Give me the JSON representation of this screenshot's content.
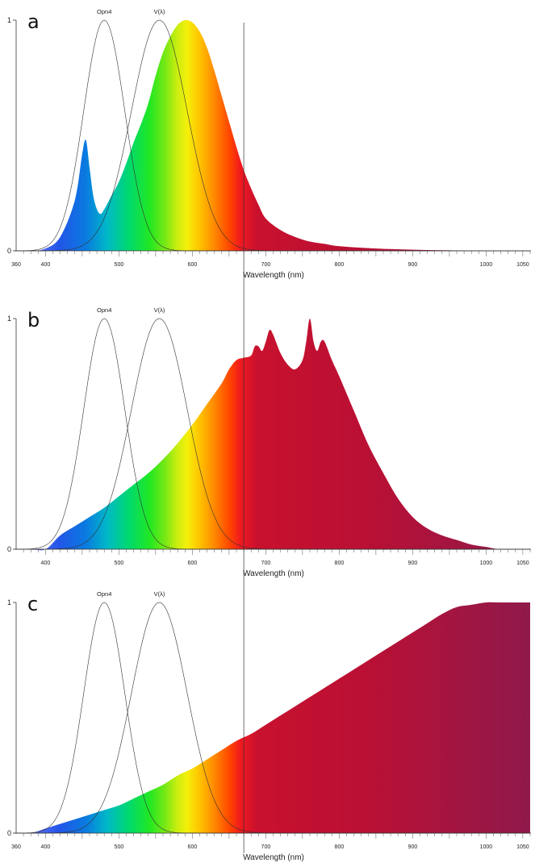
{
  "chart_data": [
    {
      "type": "area",
      "panel_label": "a",
      "xlabel": "Wavelength (nm)",
      "ylabel": "",
      "xlim": [
        360,
        1060
      ],
      "ylim": [
        0,
        1
      ],
      "y_ticks": [
        "0",
        "1"
      ],
      "x_tick_labels": [
        {
          "value": 360,
          "label": "360"
        },
        {
          "value": 400,
          "label": "400"
        },
        {
          "value": 500,
          "label": "500"
        },
        {
          "value": 600,
          "label": "600"
        },
        {
          "value": 700,
          "label": "700"
        },
        {
          "value": 800,
          "label": "800"
        },
        {
          "value": 900,
          "label": "900"
        },
        {
          "value": 1000,
          "label": "1000"
        },
        {
          "value": 1050,
          "label": "1050"
        }
      ],
      "reference_line_nm": 670,
      "reference_curves": [
        {
          "name": "Opn4",
          "peak_nm": 480,
          "width_nm": 28
        },
        {
          "name": "V(λ)",
          "peak_nm": 555,
          "width_nm": 38
        }
      ],
      "spectrum": {
        "x": [
          360,
          380,
          400,
          420,
          440,
          450,
          455,
          460,
          465,
          470,
          475,
          480,
          490,
          500,
          510,
          520,
          530,
          540,
          550,
          560,
          570,
          580,
          590,
          600,
          610,
          620,
          630,
          640,
          650,
          660,
          670,
          680,
          690,
          700,
          720,
          740,
          760,
          780,
          800,
          850,
          900,
          950,
          1000,
          1060
        ],
        "y": [
          0.0,
          0.0,
          0.01,
          0.06,
          0.22,
          0.42,
          0.48,
          0.36,
          0.24,
          0.18,
          0.16,
          0.18,
          0.24,
          0.3,
          0.38,
          0.47,
          0.55,
          0.64,
          0.76,
          0.86,
          0.93,
          0.98,
          1.0,
          0.99,
          0.95,
          0.88,
          0.78,
          0.67,
          0.56,
          0.45,
          0.35,
          0.27,
          0.2,
          0.14,
          0.09,
          0.06,
          0.04,
          0.03,
          0.02,
          0.01,
          0.005,
          0.002,
          0.0,
          0.0
        ]
      }
    },
    {
      "type": "area",
      "panel_label": "b",
      "xlabel": "Wavelength (nm)",
      "ylabel": "",
      "xlim": [
        360,
        1060
      ],
      "ylim": [
        0,
        1
      ],
      "y_ticks": [
        "0",
        "1"
      ],
      "x_tick_labels": [
        {
          "value": 400,
          "label": "400"
        },
        {
          "value": 500,
          "label": "500"
        },
        {
          "value": 600,
          "label": "600"
        },
        {
          "value": 700,
          "label": "700"
        },
        {
          "value": 800,
          "label": "800"
        },
        {
          "value": 900,
          "label": "900"
        },
        {
          "value": 1000,
          "label": "1000"
        },
        {
          "value": 1050,
          "label": "1050"
        }
      ],
      "reference_line_nm": 670,
      "reference_curves": [
        {
          "name": "Opn4",
          "peak_nm": 480,
          "width_nm": 28
        },
        {
          "name": "V(λ)",
          "peak_nm": 555,
          "width_nm": 38
        }
      ],
      "spectrum": {
        "x": [
          360,
          380,
          400,
          420,
          440,
          460,
          480,
          500,
          520,
          540,
          560,
          580,
          600,
          620,
          640,
          650,
          660,
          670,
          680,
          685,
          690,
          695,
          700,
          705,
          710,
          720,
          730,
          740,
          750,
          755,
          760,
          765,
          770,
          775,
          780,
          790,
          800,
          820,
          840,
          860,
          880,
          900,
          920,
          940,
          960,
          980,
          1000,
          1020,
          1060
        ],
        "y": [
          0.0,
          0.0,
          0.0,
          0.06,
          0.1,
          0.14,
          0.18,
          0.23,
          0.28,
          0.33,
          0.39,
          0.46,
          0.54,
          0.63,
          0.72,
          0.78,
          0.82,
          0.83,
          0.84,
          0.88,
          0.88,
          0.86,
          0.9,
          0.95,
          0.93,
          0.85,
          0.8,
          0.78,
          0.82,
          0.9,
          1.0,
          0.9,
          0.86,
          0.9,
          0.9,
          0.82,
          0.75,
          0.6,
          0.45,
          0.33,
          0.22,
          0.14,
          0.09,
          0.06,
          0.04,
          0.02,
          0.01,
          0.0,
          0.0
        ]
      }
    },
    {
      "type": "area",
      "panel_label": "c",
      "xlabel": "Wavelength (nm)",
      "ylabel": "",
      "xlim": [
        360,
        1060
      ],
      "ylim": [
        0,
        1
      ],
      "y_ticks": [
        "0",
        "1"
      ],
      "x_tick_labels": [
        {
          "value": 360,
          "label": "360"
        },
        {
          "value": 400,
          "label": "400"
        },
        {
          "value": 500,
          "label": "500"
        },
        {
          "value": 600,
          "label": "600"
        },
        {
          "value": 700,
          "label": "700"
        },
        {
          "value": 800,
          "label": "800"
        },
        {
          "value": 900,
          "label": "900"
        },
        {
          "value": 1000,
          "label": "1000"
        },
        {
          "value": 1050,
          "label": "1050"
        }
      ],
      "reference_line_nm": 670,
      "reference_curves": [
        {
          "name": "Opn4",
          "peak_nm": 480,
          "width_nm": 28
        },
        {
          "name": "V(λ)",
          "peak_nm": 555,
          "width_nm": 38
        }
      ],
      "spectrum": {
        "x": [
          360,
          380,
          400,
          420,
          440,
          460,
          480,
          500,
          520,
          540,
          560,
          580,
          600,
          620,
          640,
          660,
          680,
          700,
          720,
          740,
          760,
          780,
          800,
          820,
          840,
          860,
          880,
          900,
          920,
          940,
          960,
          980,
          1000,
          1020,
          1040,
          1060
        ],
        "y": [
          0.0,
          0.0,
          0.02,
          0.04,
          0.06,
          0.08,
          0.1,
          0.12,
          0.15,
          0.18,
          0.21,
          0.25,
          0.28,
          0.32,
          0.36,
          0.4,
          0.43,
          0.47,
          0.51,
          0.55,
          0.59,
          0.63,
          0.67,
          0.71,
          0.75,
          0.79,
          0.83,
          0.87,
          0.91,
          0.95,
          0.98,
          0.99,
          1.0,
          1.0,
          1.0,
          1.0
        ]
      }
    }
  ]
}
